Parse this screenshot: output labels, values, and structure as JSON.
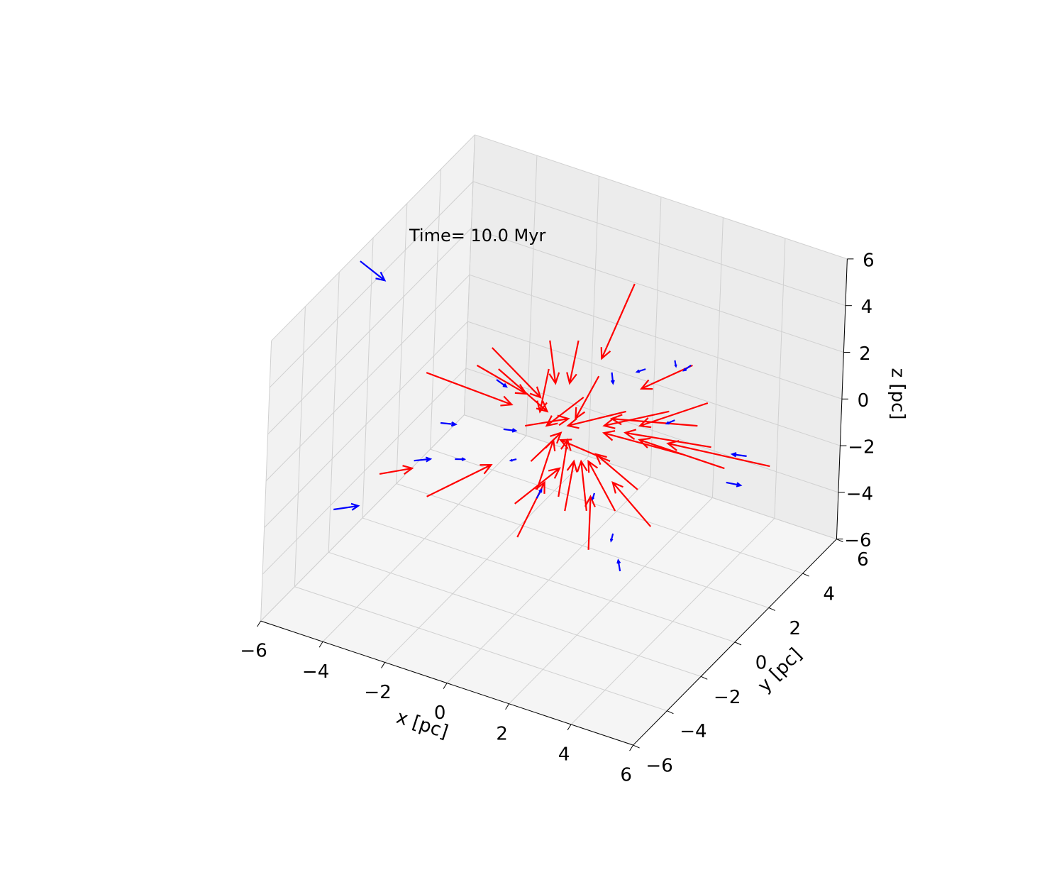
{
  "chart_data": {
    "type": "quiver3d",
    "annotation": "Time= 10.0 Myr",
    "xlabel": "x [pc]",
    "ylabel": "y [pc]",
    "zlabel": "z [pc]",
    "xlim": [
      -6,
      6
    ],
    "ylim": [
      -6,
      6
    ],
    "zlim": [
      -6,
      6
    ],
    "xticks": [
      {
        "value": -6,
        "label": "−6"
      },
      {
        "value": -4,
        "label": "−4"
      },
      {
        "value": -2,
        "label": "−2"
      },
      0,
      2,
      4,
      6
    ],
    "yticks": [
      {
        "value": -6,
        "label": "−6"
      },
      {
        "value": -4,
        "label": "−4"
      },
      {
        "value": -2,
        "label": "−2"
      },
      0,
      2,
      4,
      6
    ],
    "zticks": [
      {
        "value": -6,
        "label": "−6"
      },
      {
        "value": -4,
        "label": "−4"
      },
      {
        "value": -2,
        "label": "−2"
      },
      0,
      2,
      4,
      6
    ],
    "grid": true,
    "series": [
      {
        "color": "#ff0000",
        "x": [
          2.38,
          -4.14,
          -5.51,
          -3.98,
          6.9,
          4.85,
          4.32,
          -1.05,
          3.18,
          1.23,
          -1.17,
          -2.08,
          -1.85,
          -0.25,
          0.66,
          5.46,
          4.55,
          4.09,
          0.43,
          2.03,
          -0.94,
          0.89,
          1.81,
          -0.71,
          2.72,
          -2.54,
          2.26,
          0.21,
          -0.25,
          1.35,
          -0.48,
          3.63,
          5.01,
          1.12
        ],
        "y": [
          0,
          0,
          0,
          0,
          0,
          0,
          0,
          0,
          0,
          0,
          0,
          0,
          0,
          0,
          0,
          0,
          0,
          0,
          0,
          0,
          0,
          0,
          0,
          0,
          0,
          0,
          0,
          0,
          0,
          0,
          0,
          0,
          0,
          0
        ],
        "z": [
          7.74,
          1.05,
          -3.9,
          -4.19,
          1.93,
          3.73,
          5.11,
          -4.63,
          -2.3,
          -4.16,
          -3.25,
          3.03,
          2.22,
          4.15,
          4.55,
          1.2,
          2.62,
          1.2,
          -2.85,
          -2.14,
          0.19,
          2.22,
          -0.11,
          -1.23,
          -0.92,
          2.07,
          2.22,
          -2.34,
          2.93,
          3.33,
          -2.34,
          2.83,
          1.91,
          -2.54
        ],
        "u": [
          -0.96,
          2.75,
          1.03,
          2.01,
          -3.27,
          -2.13,
          -1.6,
          0.8,
          -1.26,
          0,
          1.38,
          1.6,
          1.6,
          0.23,
          -0.23,
          -2.74,
          -2.74,
          -2.51,
          0.23,
          -0.91,
          1.37,
          -1.14,
          -1.6,
          0.92,
          -1.37,
          1.6,
          -1.83,
          0.22,
          -0.23,
          -0.69,
          0.46,
          -2.05,
          -2.75,
          -0.23
        ],
        "v": [
          0,
          0,
          0,
          0,
          0,
          0,
          0,
          0,
          0,
          0,
          0,
          0,
          0,
          0,
          0,
          0,
          0,
          0,
          0,
          0,
          0,
          0,
          0,
          0,
          0,
          0,
          0,
          0,
          0,
          0,
          0,
          0,
          0,
          0
        ],
        "w": [
          -3.62,
          -0.15,
          0.7,
          2.25,
          -0.47,
          -1.92,
          -1.71,
          2.7,
          1.33,
          2.28,
          2.13,
          -1.42,
          -1.11,
          -1.73,
          -1.93,
          0.01,
          -0.91,
          -0.2,
          2.23,
          1.72,
          0.91,
          -1.72,
          0.2,
          1.63,
          0.91,
          -0.51,
          -1.42,
          2.53,
          -1.93,
          -2.12,
          2.33,
          -1.52,
          -0.6,
          2.02
        ]
      },
      {
        "color": "#0000ff",
        "x": [
          -6.38,
          -6.93,
          -4.43,
          -3.63,
          -3.13,
          5.53,
          6.15,
          2.26,
          1.99,
          3.75,
          4.27,
          2.83,
          -1.62,
          -1.9,
          3.82,
          -0.48,
          -1.17,
          1.76,
          1.35
        ],
        "y": [
          0,
          0,
          0,
          0,
          0,
          0,
          0,
          0,
          0,
          0,
          0,
          0,
          0,
          0,
          0,
          0,
          0,
          0,
          0
        ],
        "z": [
          4.83,
          -6.05,
          -2.85,
          -0.88,
          -2.21,
          0.63,
          2.03,
          -4.62,
          -3.13,
          5.07,
          5.09,
          4.29,
          -0.26,
          1.74,
          2.54,
          -2.71,
          -1.34,
          3.67,
          -1.68
        ],
        "u": [
          0.8,
          0.78,
          0.52,
          0.48,
          0.3,
          0.46,
          -0.46,
          -0.07,
          -0.05,
          0.04,
          -0.22,
          -0.27,
          0.39,
          0.32,
          -0.25,
          0.14,
          -0.18,
          0.05,
          -0.05
        ],
        "v": [
          0,
          0,
          0,
          0,
          0,
          0,
          0,
          0,
          0,
          0,
          0,
          0,
          0,
          0,
          0,
          0,
          0,
          0,
          0
        ],
        "w": [
          -0.47,
          0.5,
          0.3,
          0.15,
          0.13,
          0.08,
          -0.12,
          0.43,
          -0.33,
          -0.23,
          -0.32,
          -0.24,
          0.11,
          -0.16,
          -0.26,
          0.43,
          -0.14,
          -0.44,
          -0.27
        ]
      }
    ]
  }
}
